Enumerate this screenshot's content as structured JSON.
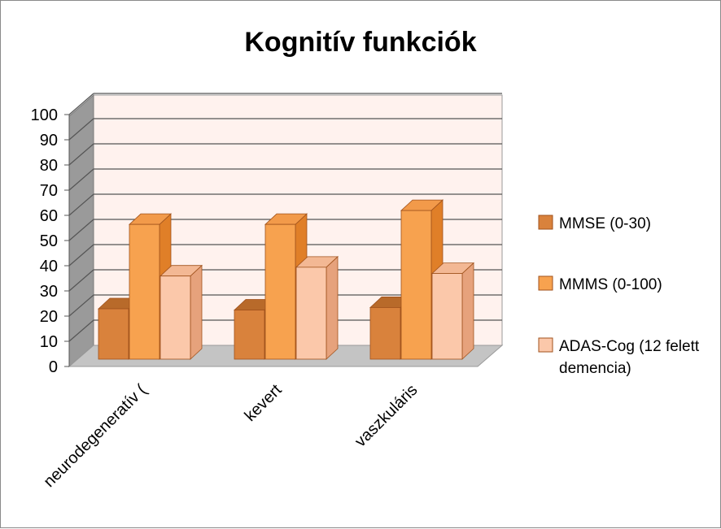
{
  "chart_data": {
    "type": "bar",
    "title": "Kognitív funkciók",
    "categories": [
      "neurodegeneratív (",
      "kevert",
      "vaszkuláris"
    ],
    "series": [
      {
        "name": "MMSE (0-30)",
        "values": [
          20,
          19.5,
          20.5
        ],
        "color": "#d9823c",
        "top": "#b86a2a",
        "side": "#b5652a"
      },
      {
        "name": "MMMS (0-100)",
        "values": [
          53.5,
          53.5,
          59
        ],
        "color": "#f7a24f",
        "top": "#f29a4a",
        "side": "#e07f28"
      },
      {
        "name": "ADAS-Cog (12 felett demencia)",
        "values": [
          33,
          36.5,
          34
        ],
        "color": "#fbc8aa",
        "top": "#f3b894",
        "side": "#e6a27c"
      }
    ],
    "legend_lines": [
      [
        "MMSE (0-30)"
      ],
      [
        "MMMS (0-100)"
      ],
      [
        "ADAS-Cog (12 felett",
        "demencia)"
      ]
    ],
    "ylim": [
      0,
      100
    ],
    "yticks": [
      "0",
      "10",
      "20",
      "30",
      "40",
      "50",
      "60",
      "70",
      "80",
      "90",
      "100"
    ],
    "grid": true,
    "legend_position": "right",
    "colors": {
      "wall": "#fff2ee",
      "floor": "#c4c4c4",
      "side_wall": "#9a9a9a",
      "gridline": "#555555"
    }
  }
}
